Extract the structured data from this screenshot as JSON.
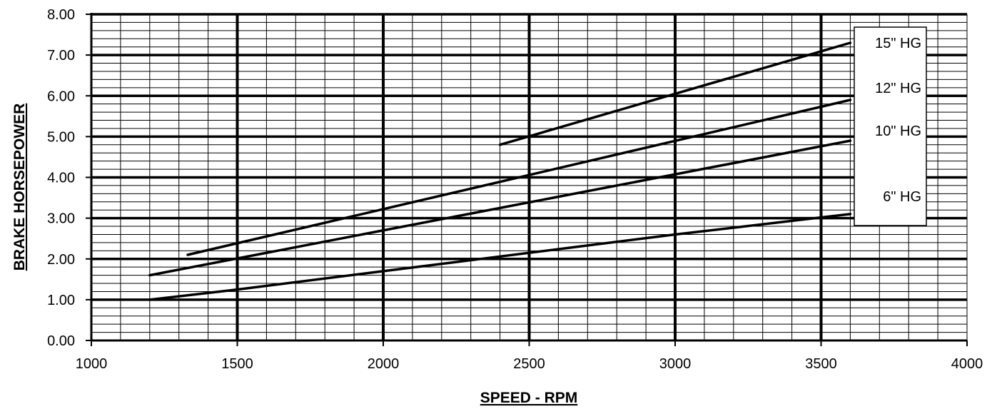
{
  "chart_data": {
    "type": "line",
    "xlabel": "SPEED - RPM",
    "ylabel": "BRAKE HORSEPOWER",
    "xlim": [
      1000,
      4000
    ],
    "ylim": [
      0,
      8
    ],
    "x_ticks": [
      "1000",
      "1500",
      "2000",
      "2500",
      "3000",
      "3500",
      "4000"
    ],
    "y_ticks": [
      "0.00",
      "1.00",
      "2.00",
      "3.00",
      "4.00",
      "5.00",
      "6.00",
      "7.00",
      "8.00"
    ],
    "grid": true,
    "legend_placement": "right",
    "series": [
      {
        "name": "15\" HG",
        "x": [
          2400,
          3600
        ],
        "y": [
          4.8,
          7.3
        ]
      },
      {
        "name": "12\" HG",
        "x": [
          1330,
          3600
        ],
        "y": [
          2.1,
          5.9
        ]
      },
      {
        "name": "10\" HG",
        "x": [
          1200,
          3600
        ],
        "y": [
          1.6,
          4.9
        ]
      },
      {
        "name": "6\" HG",
        "x": [
          1200,
          1500,
          2000,
          2500,
          3000,
          3600
        ],
        "y": [
          1.0,
          1.25,
          1.7,
          2.15,
          2.6,
          3.1
        ]
      }
    ]
  }
}
